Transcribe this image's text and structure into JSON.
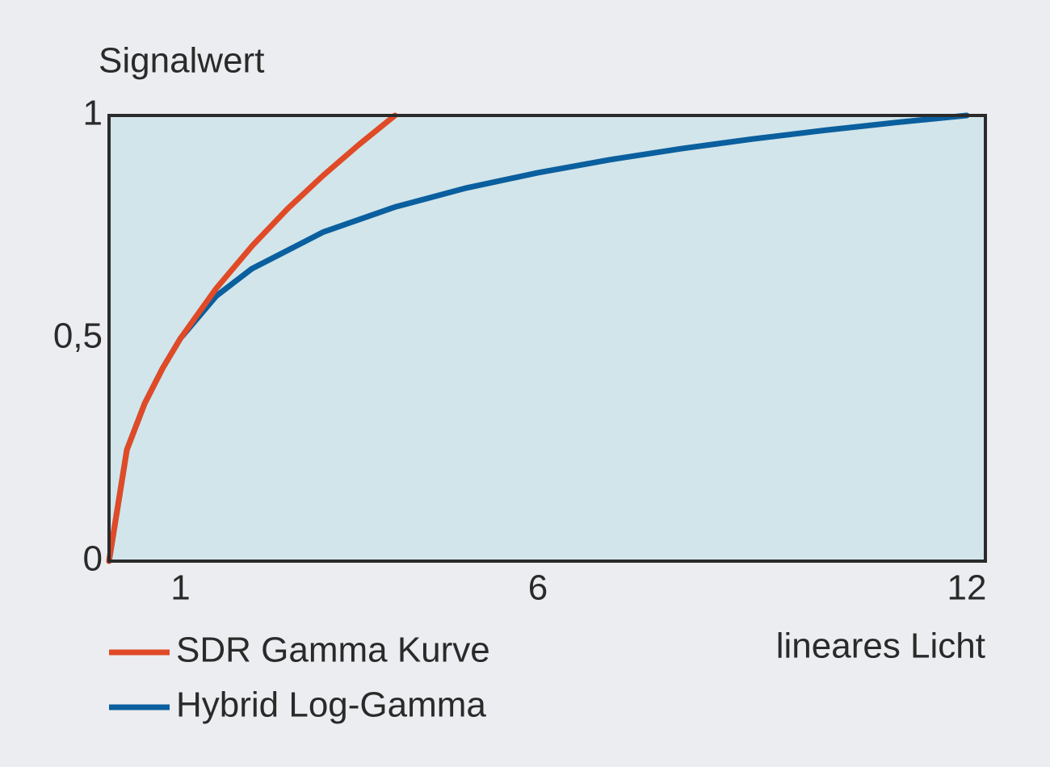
{
  "chart_data": {
    "type": "line",
    "y_label": "Signalwert",
    "x_label": "lineares Licht",
    "xlim": [
      0,
      12.26
    ],
    "ylim": [
      0,
      1
    ],
    "xticks": [
      1,
      6,
      12
    ],
    "yticks": [
      0,
      {
        "value": 0.5,
        "label": "0,5"
      },
      1
    ],
    "plot_background": "#d2e5ea",
    "series": [
      {
        "name": "SDR Gamma Kurve",
        "color": "#e04a26",
        "x": [
          0,
          0.25,
          0.5,
          0.75,
          1,
          1.5,
          2,
          2.5,
          3,
          3.5,
          4
        ],
        "values": [
          0,
          0.25,
          0.354,
          0.433,
          0.5,
          0.612,
          0.707,
          0.791,
          0.866,
          0.935,
          1
        ]
      },
      {
        "name": "Hybrid Log-Gamma",
        "color": "#0a5f9e",
        "x": [
          0,
          0.25,
          0.5,
          0.75,
          1,
          1.5,
          2,
          3,
          4,
          5,
          6,
          7,
          8,
          9,
          10,
          11,
          12
        ],
        "values": [
          0,
          0.25,
          0.354,
          0.433,
          0.5,
          0.5948,
          0.6564,
          0.7386,
          0.7946,
          0.8373,
          0.8716,
          0.9005,
          0.9253,
          0.9471,
          0.9665,
          0.9841,
          1
        ]
      }
    ]
  }
}
